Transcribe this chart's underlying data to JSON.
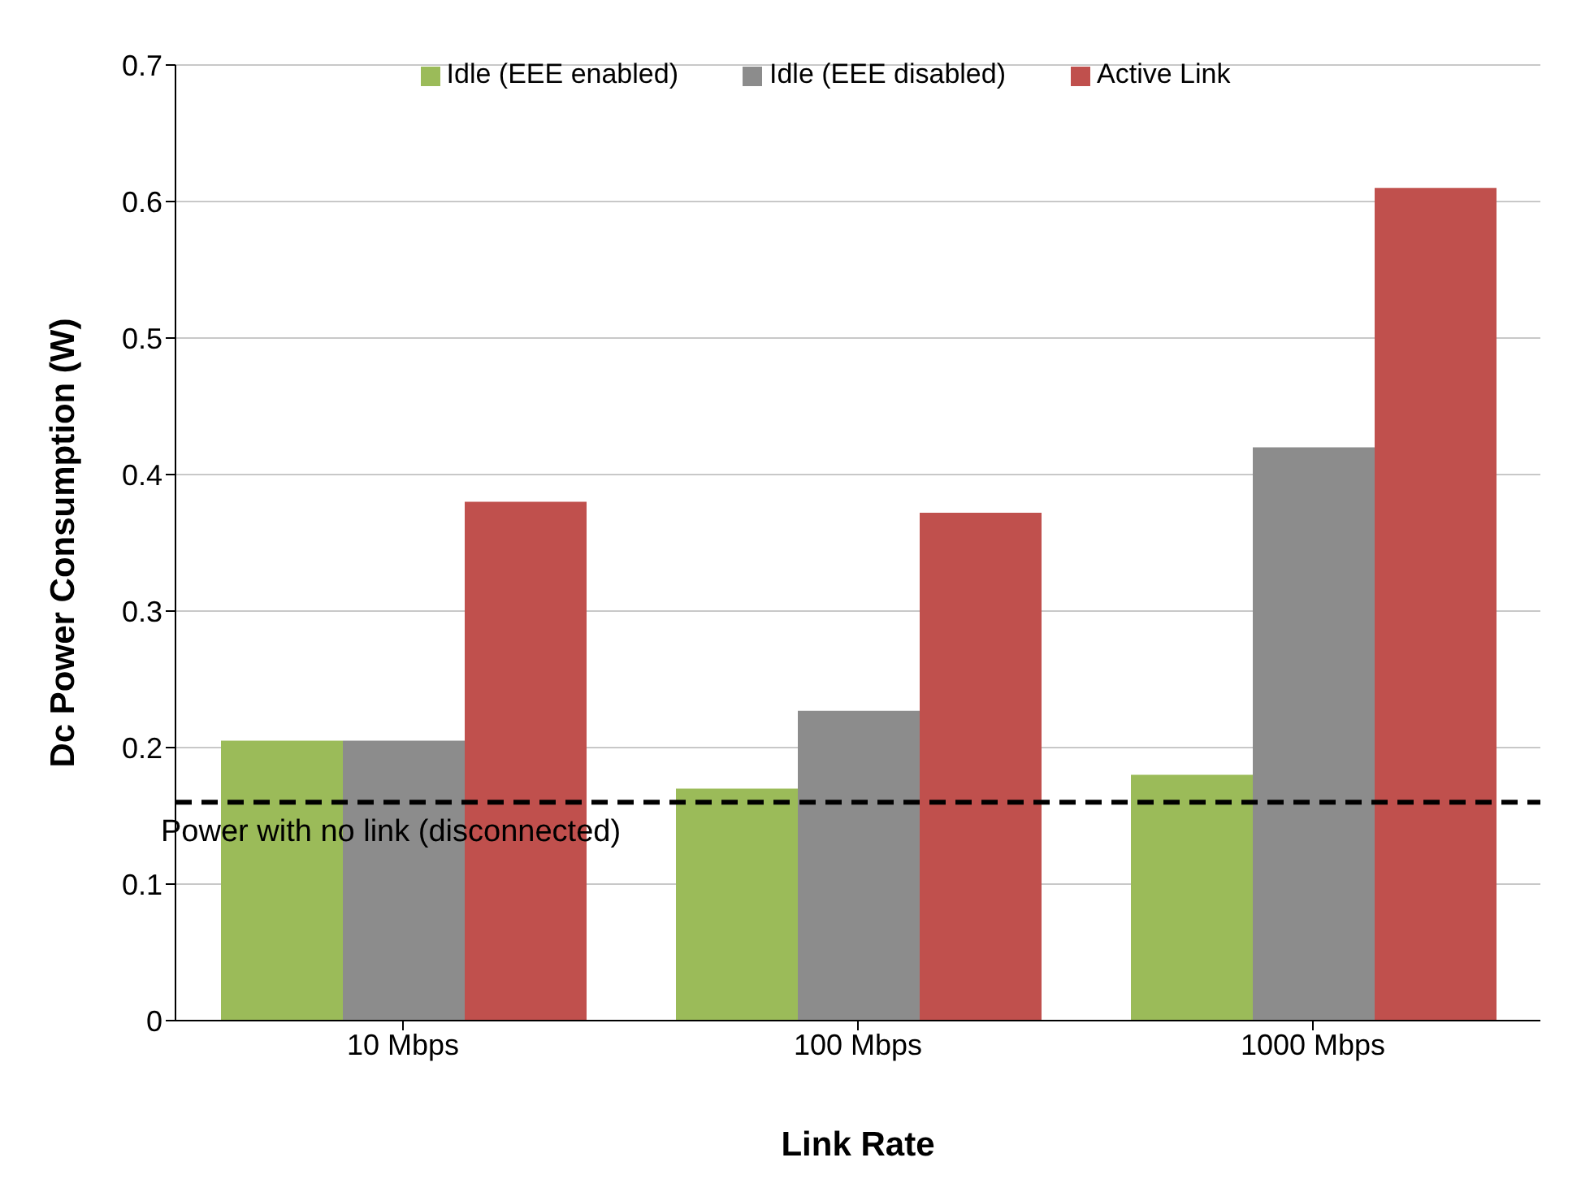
{
  "chart_data": {
    "type": "bar",
    "xlabel": "Link Rate",
    "ylabel": "Dc Power Consumption (W)",
    "categories": [
      "10 Mbps",
      "100 Mbps",
      "1000 Mbps"
    ],
    "series": [
      {
        "name": "Idle (EEE enabled)",
        "color": "#9bbb59",
        "values": [
          0.205,
          0.17,
          0.18
        ]
      },
      {
        "name": "Idle (EEE disabled)",
        "color": "#8c8c8c",
        "values": [
          0.205,
          0.227,
          0.42
        ]
      },
      {
        "name": "Active Link",
        "color": "#c0504d",
        "values": [
          0.38,
          0.372,
          0.61
        ]
      }
    ],
    "ylim": [
      0,
      0.7
    ],
    "yticks": [
      0,
      0.1,
      0.2,
      0.3,
      0.4,
      0.5,
      0.6,
      0.7
    ],
    "grid": "y",
    "legend": "top",
    "ref_lines": [
      {
        "axis": "y",
        "value": 0.16,
        "label": "Power with no link (disconnected)",
        "color": "#000000",
        "line_style": "dashed"
      }
    ]
  }
}
